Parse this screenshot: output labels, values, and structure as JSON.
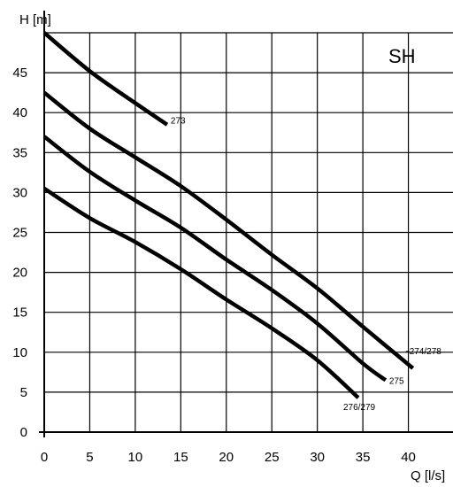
{
  "chart_data": {
    "type": "line",
    "title": "",
    "model_label": "SH",
    "xlabel": "Q [l/s]",
    "ylabel": "H [m]",
    "xlim": [
      0,
      45
    ],
    "ylim": [
      0,
      50
    ],
    "xticks": [
      0,
      5,
      10,
      15,
      20,
      25,
      30,
      35,
      40
    ],
    "yticks": [
      0,
      5,
      10,
      15,
      20,
      25,
      30,
      35,
      40,
      45
    ],
    "grid": true,
    "series": [
      {
        "name": "273",
        "x": [
          0,
          5,
          10,
          13.5
        ],
        "y": [
          50,
          45.2,
          41.2,
          38.5
        ]
      },
      {
        "name": "274/278",
        "x": [
          0,
          5,
          10,
          15,
          20,
          25,
          30,
          35,
          40.5
        ],
        "y": [
          42.5,
          38,
          34.4,
          30.8,
          26.6,
          22.2,
          18,
          13.2,
          8
        ]
      },
      {
        "name": "275",
        "x": [
          0,
          5,
          10,
          15,
          20,
          25,
          30,
          35,
          37.5
        ],
        "y": [
          37,
          32.6,
          29,
          25.6,
          21.6,
          17.8,
          13.6,
          8.6,
          6.5
        ]
      },
      {
        "name": "276/279",
        "x": [
          0,
          5,
          10,
          15,
          20,
          25,
          30,
          34.5
        ],
        "y": [
          30.5,
          26.8,
          23.8,
          20.4,
          16.6,
          13,
          9,
          4.3
        ]
      }
    ]
  }
}
